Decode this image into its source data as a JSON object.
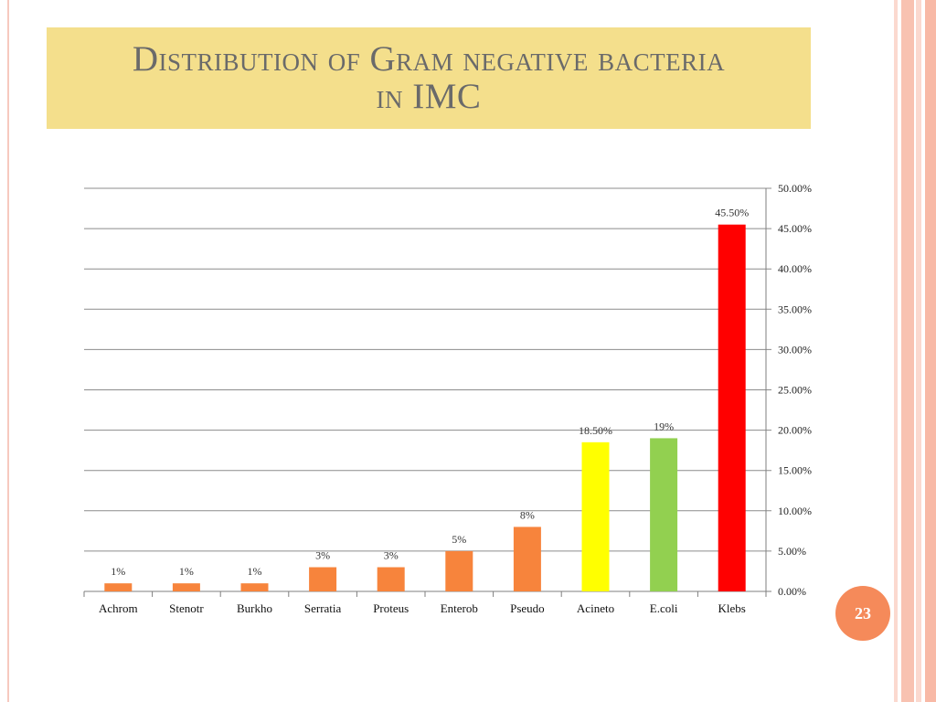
{
  "slide": {
    "title_line1": "Distribution of Gram negative bacteria",
    "title_line2": "in IMC",
    "page_number": "23"
  },
  "colors": {
    "title_background": "#f4df8c",
    "orange": "#f7843c",
    "yellow": "#ffff00",
    "green": "#92d050",
    "red": "#ff0000",
    "badge": "#f58a5a"
  },
  "chart_data": {
    "type": "bar",
    "categories": [
      "Achrom",
      "Stenotr",
      "Burkho",
      "Serratia",
      "Proteus",
      "Enterob",
      "Pseudo",
      "Acineto",
      "E.coli",
      "Klebs"
    ],
    "values": [
      1,
      1,
      1,
      3,
      3,
      5,
      8,
      18.5,
      19,
      45.5
    ],
    "data_labels": [
      "1%",
      "1%",
      "1%",
      "3%",
      "3%",
      "5%",
      "8%",
      "18.50%",
      "19%",
      "45.50%"
    ],
    "bar_colors": [
      "#f7843c",
      "#f7843c",
      "#f7843c",
      "#f7843c",
      "#f7843c",
      "#f7843c",
      "#f7843c",
      "#ffff00",
      "#92d050",
      "#ff0000"
    ],
    "y_ticks": [
      "0.00%",
      "5.00%",
      "10.00%",
      "15.00%",
      "20.00%",
      "25.00%",
      "30.00%",
      "35.00%",
      "40.00%",
      "45.00%",
      "50.00%"
    ],
    "ylim": [
      0,
      50
    ],
    "y_axis_side": "right",
    "grid": true,
    "legend": "none"
  }
}
